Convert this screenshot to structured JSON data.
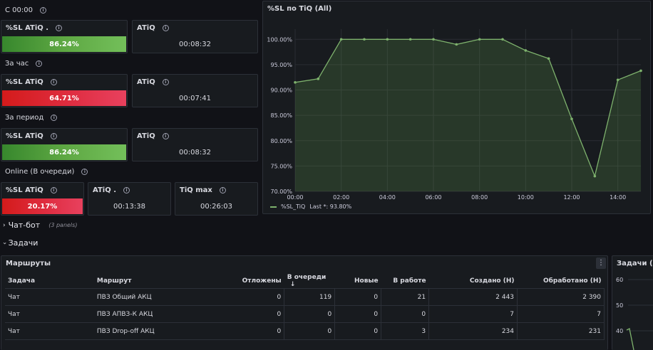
{
  "rows": {
    "since_midnight": "С 00:00",
    "per_hour": "За час",
    "per_period": "За период",
    "online": "Online (В очереди)"
  },
  "stats": {
    "r1_sl": {
      "title": "%SL ATiQ .",
      "value": "86.24%"
    },
    "r1_atiq": {
      "title": "ATiQ",
      "value": "00:08:32"
    },
    "r2_sl": {
      "title": "%SL ATiQ",
      "value": "64.71%"
    },
    "r2_atiq": {
      "title": "ATiQ",
      "value": "00:07:41"
    },
    "r3_sl": {
      "title": "%SL ATiQ",
      "value": "86.24%"
    },
    "r3_atiq": {
      "title": "ATiQ",
      "value": "00:08:32"
    },
    "r4_sl": {
      "title": "%SL ATiQ",
      "value": "20.17%"
    },
    "r4_atiq": {
      "title": "ATiQ .",
      "value": "00:13:38"
    },
    "r4_tiqmax": {
      "title": "TiQ max",
      "value": "00:26:03"
    }
  },
  "colors": {
    "green": "#73bf5a",
    "red": "#e02f44",
    "line": "#7eb26d"
  },
  "sections": {
    "chatbot": {
      "label": "Чат-бот",
      "count": "(3 panels)"
    },
    "tasks": {
      "label": "Задачи"
    }
  },
  "routes": {
    "title": "Маршруты",
    "menu_icon": "kebab-icon",
    "columns": [
      "Задача",
      "Маршрут",
      "Отложены",
      "В очереди",
      "Новые",
      "В работе",
      "Создано (Н)",
      "Обработано (Н)"
    ],
    "sort_icon": "arrow-down-icon",
    "rows": [
      [
        "Чат",
        "ПВЗ Общий АКЦ",
        "0",
        "119",
        "0",
        "21",
        "2 443",
        "2 390"
      ],
      [
        "Чат",
        "ПВЗ АПВЗ-К АКЦ",
        "0",
        "0",
        "0",
        "0",
        "7",
        "7"
      ],
      [
        "Чат",
        "ПВЗ Drop-off АКЦ",
        "0",
        "0",
        "0",
        "3",
        "234",
        "231"
      ]
    ]
  },
  "tasks_panel": {
    "title": "Задачи (All",
    "ticks": [
      "60",
      "50",
      "40"
    ]
  },
  "chart_data": {
    "type": "line",
    "title": "%SL по TiQ (All)",
    "x_ticks": [
      "00:00",
      "02:00",
      "04:00",
      "06:00",
      "08:00",
      "10:00",
      "12:00",
      "14:00"
    ],
    "y_ticks": [
      "100.00%",
      "95.00%",
      "90.00%",
      "85.00%",
      "80.00%",
      "75.00%",
      "70.00%"
    ],
    "ylim": [
      70,
      102
    ],
    "xlim": [
      0,
      15
    ],
    "series": [
      {
        "name": "%SL_TiQ",
        "x": [
          0,
          1,
          2,
          3,
          4,
          5,
          6,
          7,
          8,
          9,
          10,
          11,
          12,
          13,
          14,
          15
        ],
        "values": [
          91.5,
          92.2,
          100,
          100,
          100,
          100,
          100,
          99,
          100,
          100,
          97.8,
          96.2,
          84.3,
          73,
          92,
          93.8
        ]
      }
    ],
    "legend": {
      "label": "%SL_TiQ",
      "last": "Last *: 93.80%"
    }
  }
}
